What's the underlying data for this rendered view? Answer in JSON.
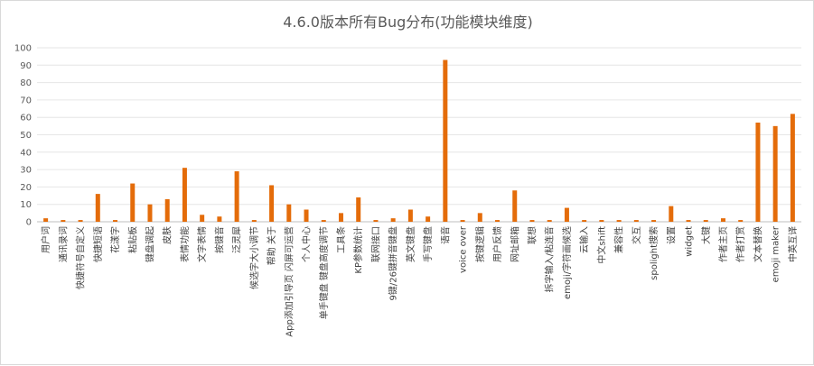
{
  "chart_data": {
    "type": "bar",
    "title": "4.6.0版本所有Bug分布(功能模块维度)",
    "xlabel": "",
    "ylabel": "",
    "ylim": [
      0,
      100
    ],
    "yticks": [
      0,
      10,
      20,
      30,
      40,
      50,
      60,
      70,
      80,
      90,
      100
    ],
    "grid": true,
    "bar_color": "#E46C0A",
    "categories": [
      "用户词",
      "通讯录词",
      "快捷符号自定义",
      "快捷短语",
      "花漾字",
      "粘贴板",
      "键盘调起",
      "皮肤",
      "表情功能",
      "文字表情",
      "按键音",
      "泛灵犀",
      "候选字大小调节",
      "帮助 关于",
      "App添加引导页 闪屏可运营",
      "个人中心",
      "单手键盘 键盘高度调节",
      "工具条",
      "KP参数统计",
      "联网接口",
      "9键/26键拼音键盘",
      "英文键盘",
      "手写键盘",
      "语音",
      "voice over",
      "按键逻辑",
      "用户反馈",
      "网址邮箱",
      "联想",
      "拆字输入/粘连音",
      "emoji/字符画候选",
      "云输入",
      "中文shift",
      "兼容性",
      "交互",
      "spolight搜索",
      "设置",
      "widget",
      "大键",
      "作者主页",
      "作者打赏",
      "文本替换",
      "emoji maker",
      "中英互译"
    ],
    "values": [
      2,
      1,
      1,
      16,
      1,
      22,
      10,
      13,
      31,
      4,
      3,
      29,
      1,
      21,
      10,
      7,
      1,
      5,
      14,
      1,
      2,
      7,
      3,
      93,
      1,
      5,
      1,
      18,
      1,
      1,
      8,
      1,
      1,
      1,
      1,
      1,
      9,
      1,
      1,
      2,
      1,
      57,
      55,
      62
    ]
  }
}
